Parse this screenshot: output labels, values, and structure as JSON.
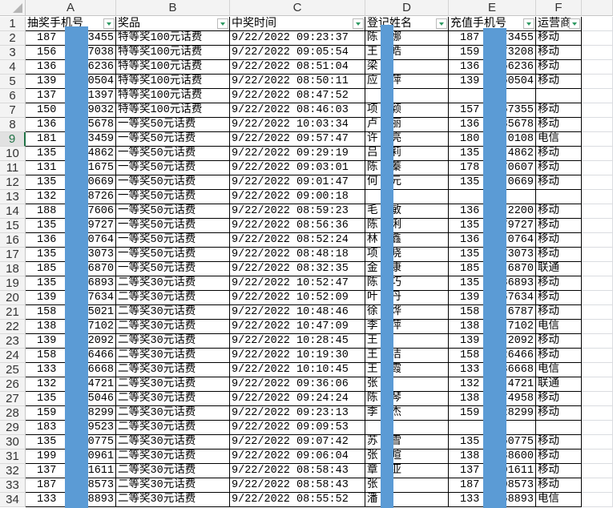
{
  "columns": [
    "A",
    "B",
    "C",
    "D",
    "E",
    "F"
  ],
  "headers": [
    "抽奖手机号",
    "奖品",
    "中奖时间",
    "登记姓名",
    "充值手机号",
    "运营商"
  ],
  "selected_row": 9,
  "redaction_color": "#5b9bd5",
  "rows": [
    {
      "a": [
        "187",
        "3455"
      ],
      "b": "特等奖100元话费",
      "c": "9/22/2022  09:23:37",
      "d": [
        "陈",
        "娜"
      ],
      "e": [
        "187",
        "73455"
      ],
      "f": "移动"
    },
    {
      "a": [
        "156",
        "7038"
      ],
      "b": "特等奖100元话费",
      "c": "9/22/2022  09:05:54",
      "d": [
        "王",
        "皓"
      ],
      "e": [
        "159",
        "73208"
      ],
      "f": "移动"
    },
    {
      "a": [
        "136",
        "6236"
      ],
      "b": "特等奖100元话费",
      "c": "9/22/2022  08:51:04",
      "d": [
        "梁",
        ""
      ],
      "e": [
        "136",
        "66236"
      ],
      "f": "移动"
    },
    {
      "a": [
        "139",
        "0504"
      ],
      "b": "特等奖100元话费",
      "c": "9/22/2022  08:50:11",
      "d": [
        "应",
        "萍"
      ],
      "e": [
        "139",
        "60504"
      ],
      "f": "移动"
    },
    {
      "a": [
        "137",
        "1397"
      ],
      "b": "特等奖100元话费",
      "c": "9/22/2022  08:47:52",
      "d": [
        "",
        ""
      ],
      "e": [
        "",
        ""
      ],
      "f": ""
    },
    {
      "a": [
        "150",
        "9032"
      ],
      "b": "特等奖100元话费",
      "c": "9/22/2022  08:46:03",
      "d": [
        "项",
        "颖"
      ],
      "e": [
        "157",
        "67355"
      ],
      "f": "移动"
    },
    {
      "a": [
        "136",
        "5678"
      ],
      "b": "一等奖50元话费",
      "c": "9/22/2022  10:03:34",
      "d": [
        "卢",
        "丽"
      ],
      "e": [
        "136",
        "35678"
      ],
      "f": "移动"
    },
    {
      "a": [
        "181",
        "3459"
      ],
      "b": "一等奖50元话费",
      "c": "9/22/2022  09:57:47",
      "d": [
        "许",
        "亮"
      ],
      "e": [
        "180",
        "0108"
      ],
      "f": "电信"
    },
    {
      "a": [
        "135",
        "4862"
      ],
      "b": "一等奖50元话费",
      "c": "9/22/2022  09:29:19",
      "d": [
        "吕",
        "莉"
      ],
      "e": [
        "135",
        "4862"
      ],
      "f": "移动"
    },
    {
      "a": [
        "131",
        "1675"
      ],
      "b": "一等奖50元话费",
      "c": "9/22/2022  09:03:01",
      "d": [
        "陈",
        "蓁"
      ],
      "e": [
        "178",
        "70607"
      ],
      "f": "移动"
    },
    {
      "a": [
        "135",
        "0669"
      ],
      "b": "一等奖50元话费",
      "c": "9/22/2022  09:01:47",
      "d": [
        "何",
        "元"
      ],
      "e": [
        "135",
        "0669"
      ],
      "f": "移动"
    },
    {
      "a": [
        "132",
        "8726"
      ],
      "b": "一等奖50元话费",
      "c": "9/22/2022  09:00:18",
      "d": [
        "",
        ""
      ],
      "e": [
        "",
        ""
      ],
      "f": ""
    },
    {
      "a": [
        "188",
        "7606"
      ],
      "b": "一等奖50元话费",
      "c": "9/22/2022  08:59:23",
      "d": [
        "毛",
        "敏"
      ],
      "e": [
        "136",
        "2200"
      ],
      "f": "移动"
    },
    {
      "a": [
        "135",
        "9727"
      ],
      "b": "一等奖50元话费",
      "c": "9/22/2022  08:56:36",
      "d": [
        "陈",
        "俐"
      ],
      "e": [
        "135",
        "79727"
      ],
      "f": "移动"
    },
    {
      "a": [
        "136",
        "0764"
      ],
      "b": "一等奖50元话费",
      "c": "9/22/2022  08:52:24",
      "d": [
        "林",
        "鑫"
      ],
      "e": [
        "136",
        "0764"
      ],
      "f": "移动"
    },
    {
      "a": [
        "135",
        "3073"
      ],
      "b": "一等奖50元话费",
      "c": "9/22/2022  08:48:18",
      "d": [
        "项",
        "晓"
      ],
      "e": [
        "135",
        "73073"
      ],
      "f": "移动"
    },
    {
      "a": [
        "185",
        "6870"
      ],
      "b": "一等奖50元话费",
      "c": "9/22/2022  08:32:35",
      "d": [
        "金",
        "康"
      ],
      "e": [
        "185",
        "6870"
      ],
      "f": "联通"
    },
    {
      "a": [
        "135",
        "6893"
      ],
      "b": "二等奖30元话费",
      "c": "9/22/2022  10:52:47",
      "d": [
        "陈",
        "巧"
      ],
      "e": [
        "135",
        "86893"
      ],
      "f": "移动"
    },
    {
      "a": [
        "139",
        "7634"
      ],
      "b": "二等奖30元话费",
      "c": "9/22/2022  10:52:09",
      "d": [
        "叶",
        "丹"
      ],
      "e": [
        "139",
        "67634"
      ],
      "f": "移动"
    },
    {
      "a": [
        "158",
        "5021"
      ],
      "b": "二等奖30元话费",
      "c": "9/22/2022  10:48:46",
      "d": [
        "徐",
        "烨"
      ],
      "e": [
        "158",
        "6787"
      ],
      "f": "移动"
    },
    {
      "a": [
        "138",
        "7102"
      ],
      "b": "二等奖30元话费",
      "c": "9/22/2022  10:47:09",
      "d": [
        "李",
        "萍"
      ],
      "e": [
        "138",
        "7102"
      ],
      "f": "电信"
    },
    {
      "a": [
        "139",
        "2092"
      ],
      "b": "二等奖30元话费",
      "c": "9/22/2022  10:28:45",
      "d": [
        "王",
        ""
      ],
      "e": [
        "139",
        "2092"
      ],
      "f": "移动"
    },
    {
      "a": [
        "158",
        "6466"
      ],
      "b": "二等奖30元话费",
      "c": "9/22/2022  10:19:30",
      "d": [
        "王",
        "洁"
      ],
      "e": [
        "158",
        "26466"
      ],
      "f": "移动"
    },
    {
      "a": [
        "133",
        "6668"
      ],
      "b": "二等奖30元话费",
      "c": "9/22/2022  10:10:45",
      "d": [
        "王",
        "霞"
      ],
      "e": [
        "133",
        "36668"
      ],
      "f": "电信"
    },
    {
      "a": [
        "132",
        "4721"
      ],
      "b": "二等奖30元话费",
      "c": "9/22/2022  09:36:06",
      "d": [
        "张",
        ""
      ],
      "e": [
        "132",
        "4721"
      ],
      "f": "联通"
    },
    {
      "a": [
        "135",
        "5046"
      ],
      "b": "二等奖30元话费",
      "c": "9/22/2022  09:24:24",
      "d": [
        "陈",
        "琴"
      ],
      "e": [
        "138",
        "74958"
      ],
      "f": "移动"
    },
    {
      "a": [
        "159",
        "8299"
      ],
      "b": "二等奖30元话费",
      "c": "9/22/2022  09:23:13",
      "d": [
        "李",
        "杰"
      ],
      "e": [
        "159",
        "28299"
      ],
      "f": "移动"
    },
    {
      "a": [
        "183",
        "9523"
      ],
      "b": "二等奖30元话费",
      "c": "9/22/2022  09:09:53",
      "d": [
        "",
        ""
      ],
      "e": [
        "",
        ""
      ],
      "f": ""
    },
    {
      "a": [
        "135",
        "0775"
      ],
      "b": "二等奖30元话费",
      "c": "9/22/2022  09:07:42",
      "d": [
        "苏",
        "雪"
      ],
      "e": [
        "135",
        "60775"
      ],
      "f": "移动"
    },
    {
      "a": [
        "199",
        "0961"
      ],
      "b": "二等奖30元话费",
      "c": "9/22/2022  09:06:04",
      "d": [
        "张",
        "暄"
      ],
      "e": [
        "138",
        "38600"
      ],
      "f": "移动"
    },
    {
      "a": [
        "137",
        "1611"
      ],
      "b": "二等奖30元话费",
      "c": "9/22/2022  08:58:43",
      "d": [
        "章",
        "亚"
      ],
      "e": [
        "137",
        "01611"
      ],
      "f": "移动"
    },
    {
      "a": [
        "187",
        "8573"
      ],
      "b": "二等奖30元话费",
      "c": "9/22/2022  08:58:43",
      "d": [
        "张",
        ""
      ],
      "e": [
        "187",
        "08573"
      ],
      "f": "移动"
    },
    {
      "a": [
        "133",
        "8893"
      ],
      "b": "二等奖30元话费",
      "c": "9/22/2022  08:55:52",
      "d": [
        "潘",
        ""
      ],
      "e": [
        "133",
        "68893"
      ],
      "f": "电信"
    }
  ]
}
